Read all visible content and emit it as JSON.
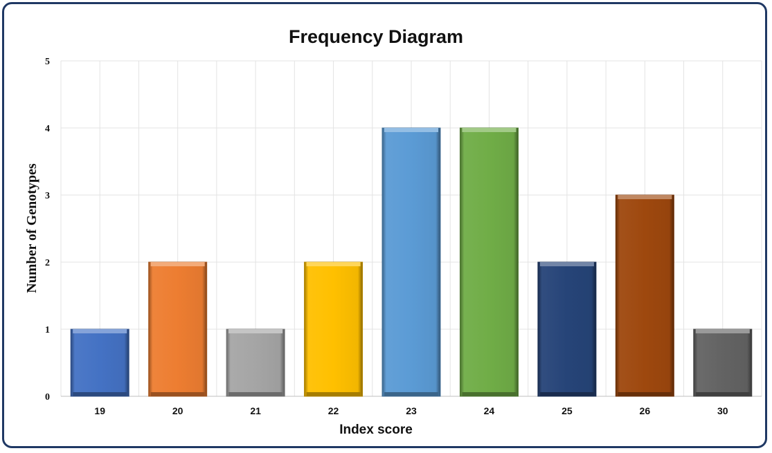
{
  "chart_data": {
    "type": "bar",
    "title": "Frequency Diagram",
    "xlabel": "Index score",
    "ylabel": "Number of Genotypes",
    "categories": [
      "19",
      "20",
      "21",
      "22",
      "23",
      "24",
      "25",
      "26",
      "30"
    ],
    "values": [
      1,
      2,
      1,
      2,
      4,
      4,
      2,
      3,
      1
    ],
    "bar_colors": [
      "#4472c4",
      "#ed7d31",
      "#a5a5a5",
      "#ffc000",
      "#5b9bd5",
      "#70ad47",
      "#264478",
      "#9e480e",
      "#636363"
    ],
    "ylim": [
      0,
      5
    ],
    "yticks": [
      0,
      1,
      2,
      3,
      4,
      5
    ],
    "grid": true,
    "legend": "none"
  }
}
